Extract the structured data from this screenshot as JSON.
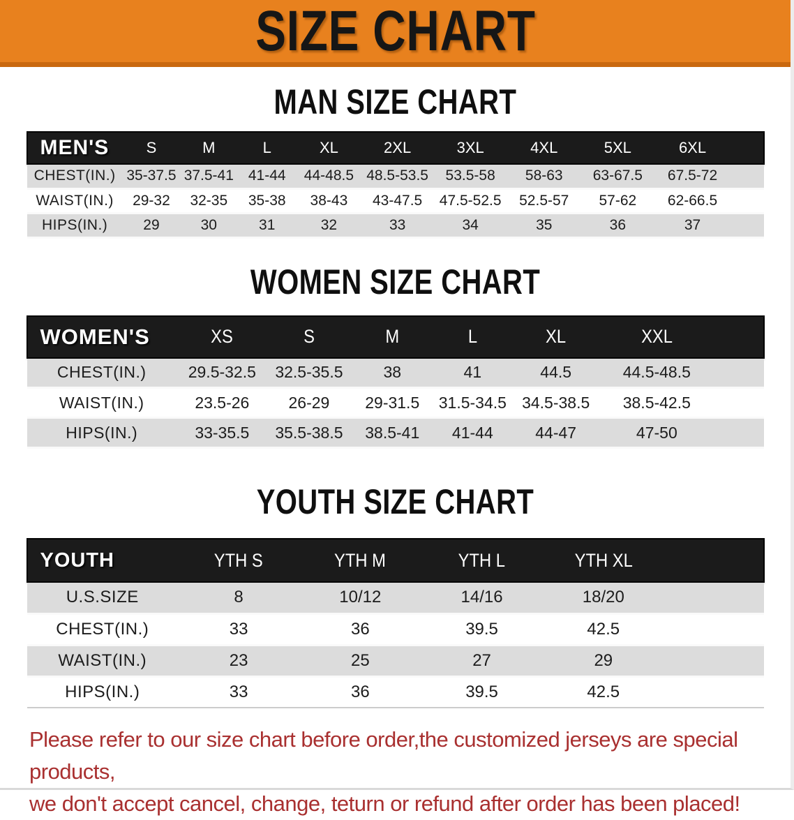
{
  "banner": {
    "title": "SIZE CHART"
  },
  "colors": {
    "banner_bg": "#e8811e",
    "banner_bottom_edge": "#c9680f",
    "banner_text": "#161616",
    "table_header_bg": "#1b1b1b",
    "table_header_text": "#ffffff",
    "row_stripe_gray": "#dcdcdc",
    "disclaimer_red": "#a93030"
  },
  "sections": [
    {
      "title": "MAN SIZE CHART",
      "table": {
        "header_label": "MEN'S",
        "columns": [
          "S",
          "M",
          "L",
          "XL",
          "2XL",
          "3XL",
          "4XL",
          "5XL",
          "6XL"
        ],
        "rows": [
          {
            "label": "CHEST(IN.)",
            "values": [
              "35-37.5",
              "37.5-41",
              "41-44",
              "44-48.5",
              "48.5-53.5",
              "53.5-58",
              "58-63",
              "63-67.5",
              "67.5-72"
            ]
          },
          {
            "label": "WAIST(IN.)",
            "values": [
              "29-32",
              "32-35",
              "35-38",
              "38-43",
              "43-47.5",
              "47.5-52.5",
              "52.5-57",
              "57-62",
              "62-66.5"
            ]
          },
          {
            "label": "HIPS(IN.)",
            "values": [
              "29",
              "30",
              "31",
              "32",
              "33",
              "34",
              "35",
              "36",
              "37"
            ]
          }
        ]
      }
    },
    {
      "title": "WOMEN SIZE CHART",
      "table": {
        "header_label": "WOMEN'S",
        "columns": [
          "XS",
          "S",
          "M",
          "L",
          "XL",
          "XXL"
        ],
        "rows": [
          {
            "label": "CHEST(IN.)",
            "values": [
              "29.5-32.5",
              "32.5-35.5",
              "38",
              "41",
              "44.5",
              "44.5-48.5"
            ]
          },
          {
            "label": "WAIST(IN.)",
            "values": [
              "23.5-26",
              "26-29",
              "29-31.5",
              "31.5-34.5",
              "34.5-38.5",
              "38.5-42.5"
            ]
          },
          {
            "label": "HIPS(IN.)",
            "values": [
              "33-35.5",
              "35.5-38.5",
              "38.5-41",
              "41-44",
              "44-47",
              "47-50"
            ]
          }
        ]
      }
    },
    {
      "title": "YOUTH SIZE CHART",
      "table": {
        "header_label": "YOUTH",
        "columns": [
          "YTH S",
          "YTH M",
          "YTH L",
          "YTH XL"
        ],
        "rows": [
          {
            "label": "U.S.SIZE",
            "values": [
              "8",
              "10/12",
              "14/16",
              "18/20"
            ]
          },
          {
            "label": "CHEST(IN.)",
            "values": [
              "33",
              "36",
              "39.5",
              "42.5"
            ]
          },
          {
            "label": "WAIST(IN.)",
            "values": [
              "23",
              "25",
              "27",
              "29"
            ]
          },
          {
            "label": "HIPS(IN.)",
            "values": [
              "33",
              "36",
              "39.5",
              "42.5"
            ]
          }
        ]
      }
    }
  ],
  "disclaimer": {
    "line1": "Please refer to our size chart before order,the customized jerseys are special products,",
    "line2": "we don't accept cancel, change, teturn or refund after order has been placed!"
  }
}
